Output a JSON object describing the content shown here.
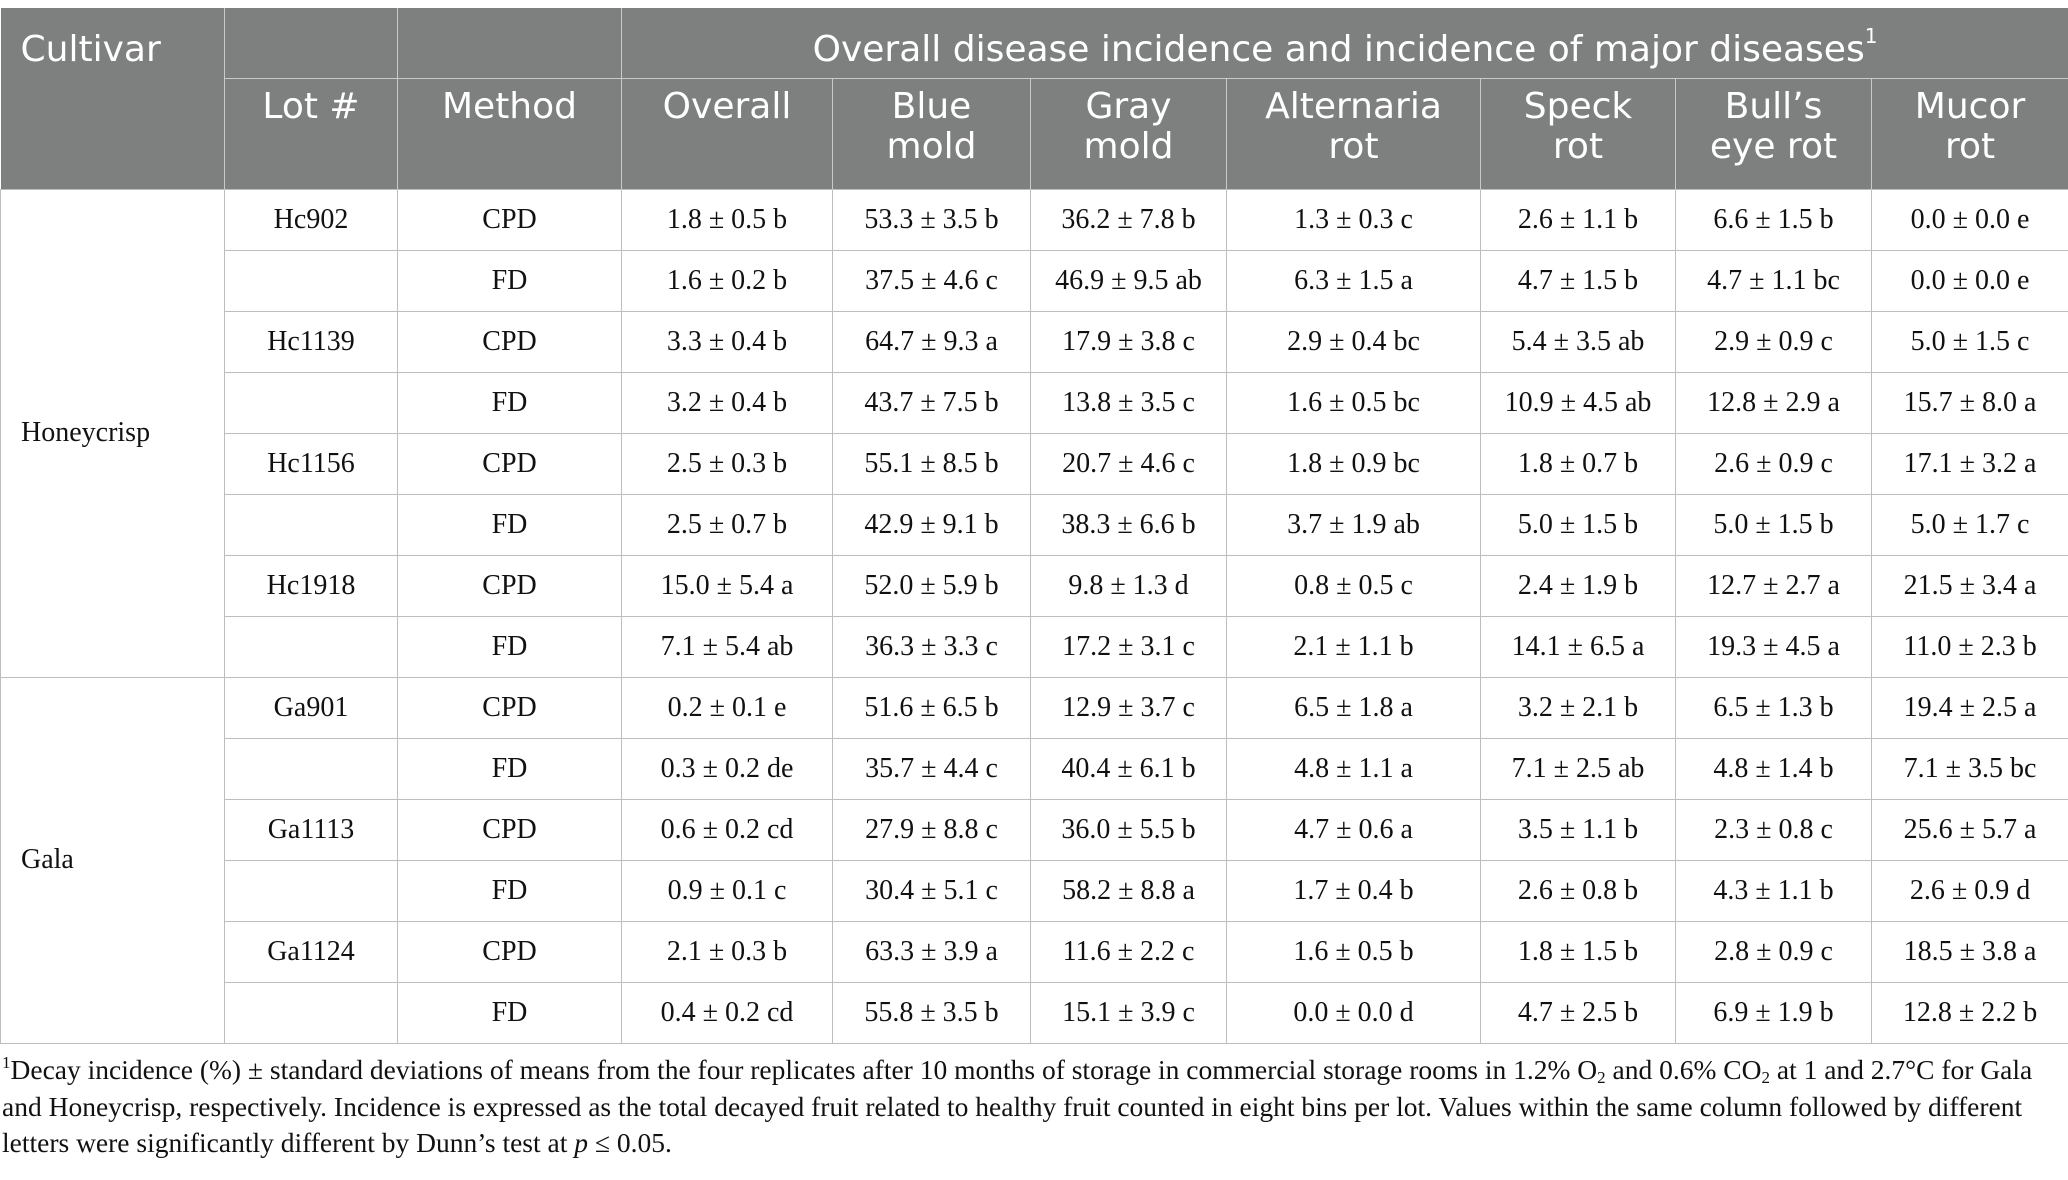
{
  "header": {
    "cultivar": "Cultivar",
    "group_title": "Overall disease incidence and incidence of major diseases",
    "group_footnote_mark": "1",
    "lot": "Lot #",
    "method": "Method",
    "cols": [
      {
        "l1": "Overall",
        "l2": ""
      },
      {
        "l1": "Blue",
        "l2": "mold"
      },
      {
        "l1": "Gray",
        "l2": "mold"
      },
      {
        "l1": "Alternaria",
        "l2": "rot"
      },
      {
        "l1": "Speck",
        "l2": "rot"
      },
      {
        "l1": "Bull’s",
        "l2": "eye rot"
      },
      {
        "l1": "Mucor",
        "l2": "rot"
      }
    ]
  },
  "groups": [
    {
      "cultivar": "Honeycrisp",
      "rows": [
        {
          "lot": "Hc902",
          "method": "CPD",
          "v": [
            "1.8 ± 0.5 b",
            "53.3 ± 3.5 b",
            "36.2 ± 7.8 b",
            "1.3 ± 0.3 c",
            "2.6 ± 1.1 b",
            "6.6 ± 1.5 b",
            "0.0 ± 0.0 e"
          ]
        },
        {
          "lot": "",
          "method": "FD",
          "v": [
            "1.6 ± 0.2 b",
            "37.5 ± 4.6 c",
            "46.9 ± 9.5 ab",
            "6.3 ± 1.5 a",
            "4.7 ± 1.5 b",
            "4.7 ± 1.1 bc",
            "0.0 ± 0.0 e"
          ]
        },
        {
          "lot": "Hc1139",
          "method": "CPD",
          "v": [
            "3.3 ± 0.4 b",
            "64.7 ± 9.3 a",
            "17.9 ± 3.8 c",
            "2.9 ± 0.4 bc",
            "5.4 ± 3.5 ab",
            "2.9 ± 0.9 c",
            "5.0 ± 1.5 c"
          ]
        },
        {
          "lot": "",
          "method": "FD",
          "v": [
            "3.2 ± 0.4 b",
            "43.7 ± 7.5 b",
            "13.8 ± 3.5 c",
            "1.6 ± 0.5 bc",
            "10.9 ± 4.5 ab",
            "12.8 ± 2.9 a",
            "15.7 ± 8.0 a"
          ]
        },
        {
          "lot": "Hc1156",
          "method": "CPD",
          "v": [
            "2.5 ± 0.3 b",
            "55.1 ± 8.5 b",
            "20.7 ± 4.6 c",
            "1.8 ± 0.9 bc",
            "1.8 ± 0.7 b",
            "2.6 ± 0.9 c",
            "17.1 ± 3.2 a"
          ]
        },
        {
          "lot": "",
          "method": "FD",
          "v": [
            "2.5 ± 0.7 b",
            "42.9 ± 9.1 b",
            "38.3 ± 6.6 b",
            "3.7 ± 1.9 ab",
            "5.0 ± 1.5 b",
            "5.0 ± 1.5 b",
            "5.0 ± 1.7 c"
          ]
        },
        {
          "lot": "Hc1918",
          "method": "CPD",
          "v": [
            "15.0 ± 5.4 a",
            "52.0 ± 5.9 b",
            "9.8 ± 1.3 d",
            "0.8 ± 0.5 c",
            "2.4 ± 1.9 b",
            "12.7 ± 2.7 a",
            "21.5 ± 3.4 a"
          ]
        },
        {
          "lot": "",
          "method": "FD",
          "v": [
            "7.1 ± 5.4 ab",
            "36.3 ± 3.3 c",
            "17.2 ± 3.1 c",
            "2.1 ± 1.1 b",
            "14.1 ± 6.5 a",
            "19.3 ± 4.5 a",
            "11.0 ± 2.3 b"
          ]
        }
      ]
    },
    {
      "cultivar": "Gala",
      "rows": [
        {
          "lot": "Ga901",
          "method": "CPD",
          "v": [
            "0.2 ± 0.1 e",
            "51.6 ± 6.5 b",
            "12.9 ± 3.7 c",
            "6.5 ± 1.8 a",
            "3.2 ± 2.1 b",
            "6.5 ± 1.3 b",
            "19.4 ± 2.5 a"
          ]
        },
        {
          "lot": "",
          "method": "FD",
          "v": [
            "0.3 ± 0.2 de",
            "35.7 ± 4.4 c",
            "40.4 ± 6.1 b",
            "4.8 ± 1.1 a",
            "7.1 ± 2.5 ab",
            "4.8 ± 1.4 b",
            "7.1 ± 3.5 bc"
          ]
        },
        {
          "lot": "Ga1113",
          "method": "CPD",
          "v": [
            "0.6 ± 0.2 cd",
            "27.9 ± 8.8 c",
            "36.0 ± 5.5 b",
            "4.7 ± 0.6 a",
            "3.5 ± 1.1 b",
            "2.3 ± 0.8 c",
            "25.6 ± 5.7 a"
          ]
        },
        {
          "lot": "",
          "method": "FD",
          "v": [
            "0.9 ± 0.1 c",
            "30.4 ± 5.1 c",
            "58.2 ± 8.8 a",
            "1.7 ± 0.4 b",
            "2.6 ± 0.8 b",
            "4.3 ± 1.1 b",
            "2.6 ± 0.9 d"
          ]
        },
        {
          "lot": "Ga1124",
          "method": "CPD",
          "v": [
            "2.1 ± 0.3 b",
            "63.3 ± 3.9 a",
            "11.6 ± 2.2 c",
            "1.6 ± 0.5 b",
            "1.8 ± 1.5 b",
            "2.8 ± 0.9 c",
            "18.5 ± 3.8 a"
          ]
        },
        {
          "lot": "",
          "method": "FD",
          "v": [
            "0.4 ± 0.2 cd",
            "55.8 ± 3.5 b",
            "15.1 ± 3.9 c",
            "0.0 ± 0.0 d",
            "4.7 ± 2.5 b",
            "6.9 ± 1.9 b",
            "12.8 ± 2.2 b"
          ]
        }
      ]
    }
  ],
  "footnote": {
    "mark": "1",
    "p1": "Decay incidence (%) ± standard deviations of means from the four replicates after 10 months of storage in commercial storage rooms in 1.2% O",
    "sub1": "2",
    "p2": " and 0.6% CO",
    "sub2": "2",
    "p3": " at 1 and 2.7°C for Gala and Honeycrisp, respectively. Incidence is expressed as the total decayed fruit related to healthy fruit counted in eight bins per lot. Values within the same column followed by different letters were significantly different by Dunn’s test at ",
    "p_symbol": "p",
    "p4": " ≤ 0.05."
  }
}
